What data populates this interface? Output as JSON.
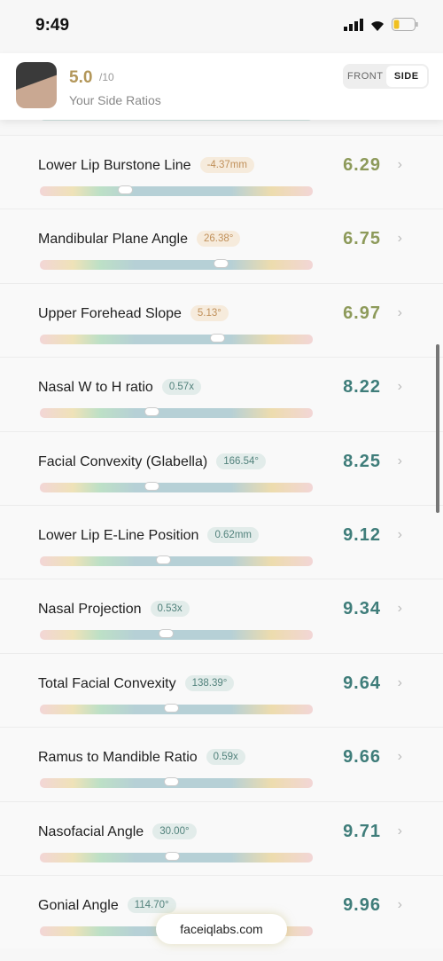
{
  "status": {
    "time": "9:49"
  },
  "header": {
    "score": "5.0",
    "max": "/10",
    "subtitle": "Your Side Ratios",
    "tabs": [
      "FRONT",
      "SIDE"
    ]
  },
  "rows": [
    {
      "name": "Lower Lip Burstone Line",
      "measure": "-4.37mm",
      "score": "6.29"
    },
    {
      "name": "Mandibular Plane Angle",
      "measure": "26.38°",
      "score": "6.75"
    },
    {
      "name": "Upper Forehead Slope",
      "measure": "5.13°",
      "score": "6.97"
    },
    {
      "name": "Nasal W to H ratio",
      "measure": "0.57x",
      "score": "8.22"
    },
    {
      "name": "Facial Convexity (Glabella)",
      "measure": "166.54°",
      "score": "8.25"
    },
    {
      "name": "Lower Lip E-Line Position",
      "measure": "0.62mm",
      "score": "9.12"
    },
    {
      "name": "Nasal Projection",
      "measure": "0.53x",
      "score": "9.34"
    },
    {
      "name": "Total Facial Convexity",
      "measure": "138.39°",
      "score": "9.64"
    },
    {
      "name": "Ramus to Mandible Ratio",
      "measure": "0.59x",
      "score": "9.66"
    },
    {
      "name": "Nasofacial Angle",
      "measure": "30.00°",
      "score": "9.71"
    },
    {
      "name": "Gonial Angle",
      "measure": "114.70°",
      "score": "9.96"
    }
  ],
  "footer": {
    "site": "faceiqlabs.com"
  }
}
